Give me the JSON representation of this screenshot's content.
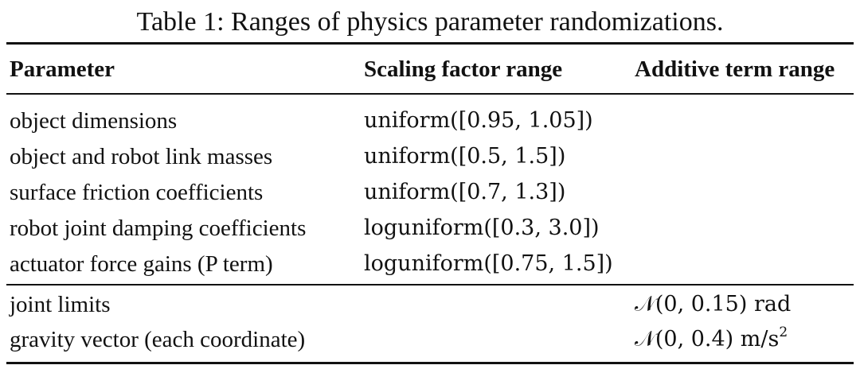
{
  "caption": "Table 1: Ranges of physics parameter randomizations.",
  "headers": {
    "parameter": "Parameter",
    "scaling": "Scaling factor range",
    "additive": "Additive term range"
  },
  "group1": [
    {
      "parameter": "object dimensions",
      "scaling": "uniform([0.95, 1.05])",
      "additive": ""
    },
    {
      "parameter": "object and robot link masses",
      "scaling": "uniform([0.5, 1.5])",
      "additive": ""
    },
    {
      "parameter": "surface friction coefficients",
      "scaling": "uniform([0.7, 1.3])",
      "additive": ""
    },
    {
      "parameter": "robot joint damping coefficients",
      "scaling": "loguniform([0.3, 3.0])",
      "additive": ""
    },
    {
      "parameter": "actuator force gains (P term)",
      "scaling": "loguniform([0.75, 1.5])",
      "additive": ""
    }
  ],
  "group2": [
    {
      "parameter": "joint limits",
      "scaling": "",
      "additive": "𝒩(0, 0.15) rad"
    },
    {
      "parameter": "gravity vector (each coordinate)",
      "scaling": "",
      "additive_main": "𝒩(0, 0.4) m/s",
      "additive_sup": "2"
    }
  ]
}
